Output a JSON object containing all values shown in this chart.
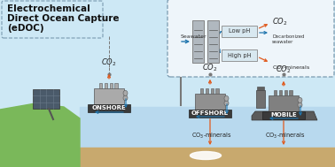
{
  "bg_sky": "#cde8f5",
  "bg_ocean": "#b8d9ee",
  "bg_seafloor": "#c8a96e",
  "bg_land": "#7ab85a",
  "orange": "#e05a1e",
  "blue": "#2176ae",
  "gray1": "#4a4a4a",
  "gray2": "#787878",
  "gray3": "#aaaaaa",
  "white": "#ffffff",
  "dash_color": "#7a9ab0",
  "title1": "Electrochemical",
  "title2": "Direct Ocean Capture",
  "title3": "(eDOC)",
  "label_onshore": "ONSHORE",
  "label_offshore": "OFFSHORE",
  "label_mobile": "MOBILE",
  "label_seawater": "Seawater",
  "label_lowph": "Low pH",
  "label_highph": "High pH",
  "label_decarb": "Decarbonized\nseawater",
  "label_co2": "CO$_2$",
  "label_co3": "CO$_3$-minerals"
}
